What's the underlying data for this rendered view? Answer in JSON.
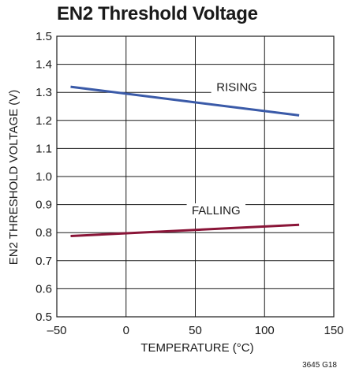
{
  "chart_data": {
    "type": "line",
    "title": "EN2 Threshold Voltage",
    "xlabel": "TEMPERATURE (°C)",
    "ylabel": "EN2 THRESHOLD VOLTAGE (V)",
    "xlim": [
      -50,
      150
    ],
    "ylim": [
      0.5,
      1.5
    ],
    "x_ticks": [
      -50,
      0,
      50,
      100,
      150
    ],
    "x_tick_labels": [
      "–50",
      "0",
      "50",
      "100",
      "150"
    ],
    "y_ticks": [
      0.5,
      0.6,
      0.7,
      0.8,
      0.9,
      1.0,
      1.1,
      1.2,
      1.3,
      1.4,
      1.5
    ],
    "y_tick_labels": [
      "0.5",
      "0.6",
      "0.7",
      "0.8",
      "0.9",
      "1.0",
      "1.1",
      "1.2",
      "1.3",
      "1.4",
      "1.5"
    ],
    "grid": true,
    "series": [
      {
        "name": "RISING",
        "color": "#3a5aa8",
        "x": [
          -40,
          125
        ],
        "values": [
          1.32,
          1.218
        ],
        "label_x": 80,
        "label_y": 1.305
      },
      {
        "name": "FALLING",
        "color": "#8a1538",
        "x": [
          -40,
          125
        ],
        "values": [
          0.788,
          0.828
        ],
        "label_x": 65,
        "label_y": 0.865
      }
    ]
  },
  "footer": {
    "figure_id": "3645 G18"
  }
}
